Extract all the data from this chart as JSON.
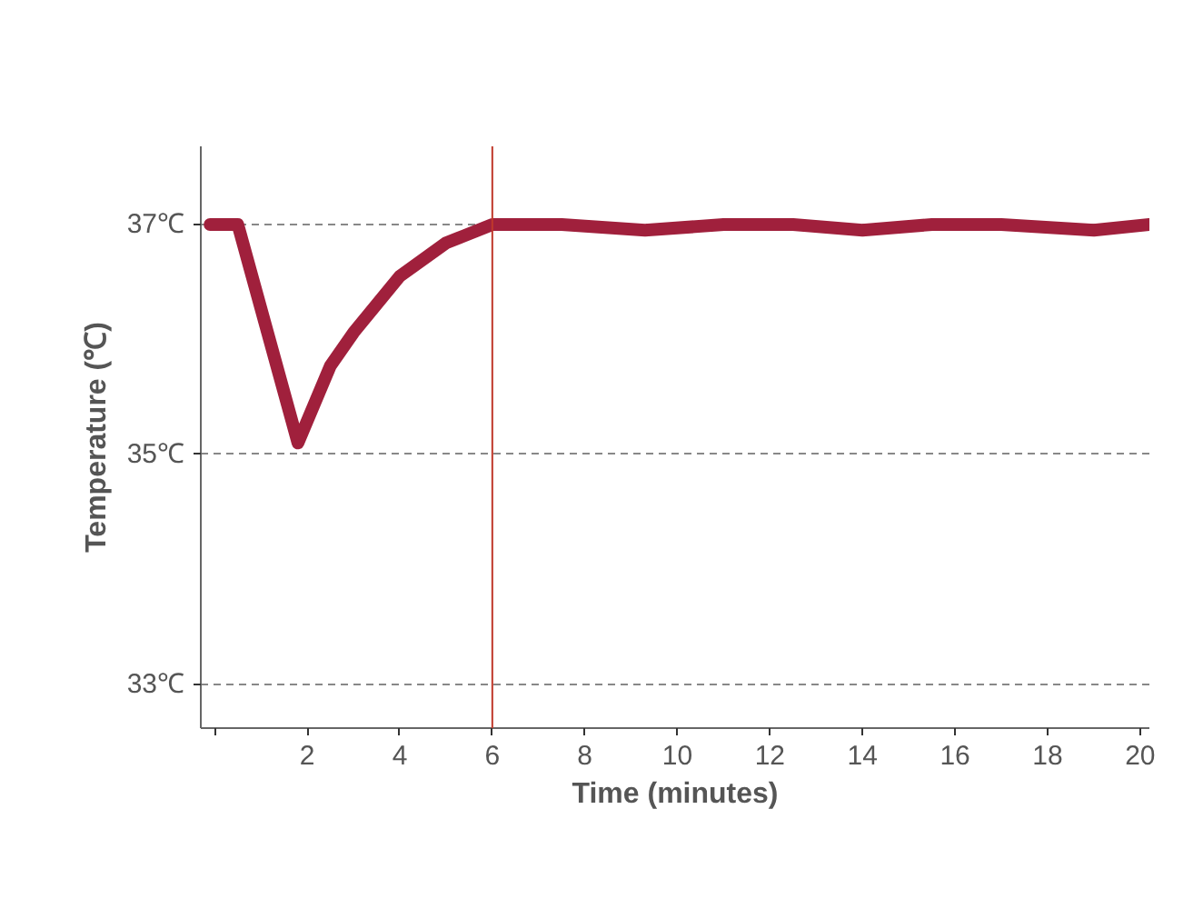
{
  "chart_data": {
    "type": "line",
    "xlabel": "Time (minutes)",
    "ylabel": "Temperature (℃)",
    "x": [
      -0.1,
      0.5,
      1.8,
      2.5,
      3,
      4,
      5,
      6,
      7.5,
      9.3,
      11,
      12.5,
      14,
      15.5,
      17,
      19,
      20.2
    ],
    "series": [
      {
        "color": "#a0203c",
        "values": [
          37,
          37,
          35.1,
          35.77,
          36.06,
          36.55,
          36.84,
          37,
          37,
          36.95,
          37,
          37,
          36.95,
          37,
          37,
          36.95,
          37
        ]
      }
    ],
    "xlim": [
      -0.3,
      20.2
    ],
    "ylim": [
      32.62,
      37.68
    ],
    "xticks": [
      {
        "value": 0,
        "label": null
      },
      2,
      4,
      6,
      8,
      10,
      12,
      14,
      16,
      18,
      20
    ],
    "yticks": [
      {
        "value": 33,
        "label": "33℃"
      },
      {
        "value": 35,
        "label": "35℃"
      },
      {
        "value": 37,
        "label": "37℃"
      }
    ],
    "ref_lines": [
      {
        "axis": "x",
        "value": 6,
        "label": null,
        "color": "#c0392b"
      }
    ],
    "grid": "y",
    "marker": "none",
    "line_style": "solid"
  }
}
